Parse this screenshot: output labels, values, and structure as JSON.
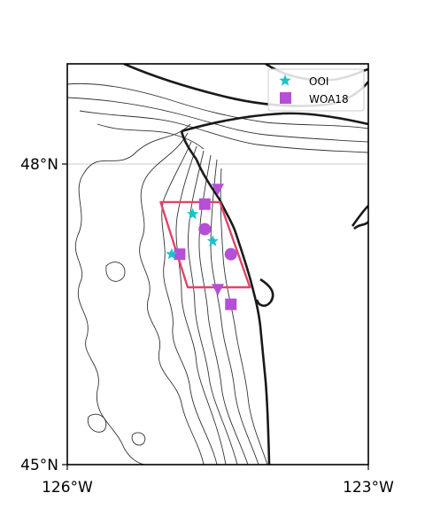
{
  "map": {
    "lat_ticks": [
      "48°N",
      "45°N"
    ],
    "lon_ticks": [
      "126°W",
      "123°W"
    ],
    "extent": {
      "lon_min": -126,
      "lon_max": -123,
      "lat_min": 45,
      "lat_max": 49
    }
  },
  "legend": {
    "placement": "top-right",
    "items": [
      {
        "label": "OOI",
        "marker": "star",
        "color": "#17c3cc"
      },
      {
        "label": "WOA18",
        "marker": "square",
        "color": "#b44fd6"
      }
    ]
  },
  "colors": {
    "coastline": "#1a1a1a",
    "bathymetry": "#333333",
    "box": "#e0456a",
    "ooi": "#17c3cc",
    "woa": "#b44fd6",
    "gridline": "#cccccc"
  },
  "markers": {
    "ooi_stars": [
      {
        "lon": -124.75,
        "lat": 47.5
      },
      {
        "lon": -124.55,
        "lat": 47.23
      },
      {
        "lon": -124.96,
        "lat": 47.1
      }
    ],
    "woa_squares": [
      {
        "lon": -124.63,
        "lat": 47.6
      },
      {
        "lon": -124.88,
        "lat": 47.1
      },
      {
        "lon": -124.37,
        "lat": 46.6
      }
    ],
    "woa_circles": [
      {
        "lon": -124.63,
        "lat": 47.35
      },
      {
        "lon": -124.37,
        "lat": 47.1
      }
    ],
    "woa_triangles": [
      {
        "lon": -124.5,
        "lat": 47.75
      },
      {
        "lon": -124.5,
        "lat": 46.75
      }
    ]
  },
  "region_box": [
    {
      "lon": -125.07,
      "lat": 47.62
    },
    {
      "lon": -124.48,
      "lat": 47.62
    },
    {
      "lon": -124.18,
      "lat": 46.77
    },
    {
      "lon": -124.8,
      "lat": 46.77
    }
  ]
}
